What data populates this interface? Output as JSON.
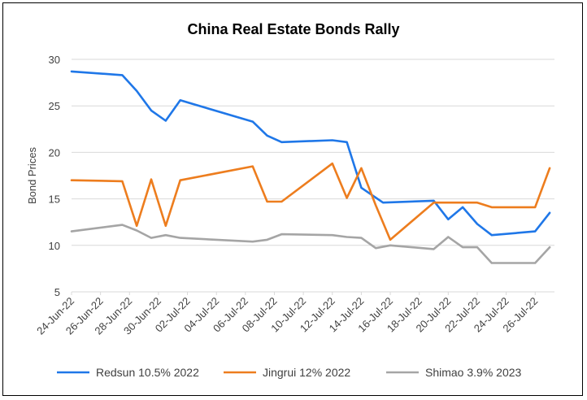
{
  "chart_data": {
    "type": "line",
    "title": "China Real Estate Bonds Rally",
    "xlabel": "",
    "ylabel": "Bond Prices",
    "ylim": [
      5,
      30
    ],
    "yticks": [
      5,
      10,
      15,
      20,
      25,
      30
    ],
    "grid": true,
    "legend_position": "bottom",
    "x_range": [
      0,
      32
    ],
    "x_tick_labels": [
      {
        "day": 0,
        "label": "24-Jun-22"
      },
      {
        "day": 2,
        "label": "26-Jun-22"
      },
      {
        "day": 4,
        "label": "28-Jun-22"
      },
      {
        "day": 6,
        "label": "30-Jun-22"
      },
      {
        "day": 8,
        "label": "02-Jul-22"
      },
      {
        "day": 10,
        "label": "04-Jul-22"
      },
      {
        "day": 12,
        "label": "06-Jul-22"
      },
      {
        "day": 14,
        "label": "08-Jul-22"
      },
      {
        "day": 16,
        "label": "10-Jul-22"
      },
      {
        "day": 18,
        "label": "12-Jul-22"
      },
      {
        "day": 20,
        "label": "14-Jul-22"
      },
      {
        "day": 22,
        "label": "16-Jul-22"
      },
      {
        "day": 24,
        "label": "18-Jul-22"
      },
      {
        "day": 26,
        "label": "20-Jul-22"
      },
      {
        "day": 28,
        "label": "22-Jul-22"
      },
      {
        "day": 30,
        "label": "24-Jul-22"
      },
      {
        "day": 32,
        "label": "26-Jul-22"
      }
    ],
    "series": [
      {
        "name": "Redsun 10.5% 2022",
        "color": "#1f77e8",
        "points": [
          [
            0,
            28.7
          ],
          [
            3.5,
            28.3
          ],
          [
            4.5,
            26.6
          ],
          [
            5.5,
            24.5
          ],
          [
            6.5,
            23.4
          ],
          [
            7.5,
            25.6
          ],
          [
            12.5,
            23.3
          ],
          [
            13.5,
            21.8
          ],
          [
            14.5,
            21.1
          ],
          [
            18,
            21.3
          ],
          [
            19,
            21.1
          ],
          [
            20,
            16.2
          ],
          [
            21.5,
            14.6
          ],
          [
            25,
            14.8
          ],
          [
            26,
            12.8
          ],
          [
            27,
            14.1
          ],
          [
            28,
            12.3
          ],
          [
            29,
            11.1
          ],
          [
            32,
            11.5
          ],
          [
            33,
            13.5
          ]
        ]
      },
      {
        "name": "Jingrui 12% 2022",
        "color": "#ed7d1e",
        "points": [
          [
            0,
            17.0
          ],
          [
            3.5,
            16.9
          ],
          [
            4.5,
            12.1
          ],
          [
            5.5,
            17.1
          ],
          [
            6.5,
            12.1
          ],
          [
            7.5,
            17.0
          ],
          [
            12.5,
            18.5
          ],
          [
            13.5,
            14.7
          ],
          [
            14.5,
            14.7
          ],
          [
            18,
            18.8
          ],
          [
            19,
            15.1
          ],
          [
            20,
            18.3
          ],
          [
            21,
            14.3
          ],
          [
            22,
            10.6
          ],
          [
            25,
            14.6
          ],
          [
            28,
            14.6
          ],
          [
            29,
            14.1
          ],
          [
            32,
            14.1
          ],
          [
            33,
            18.3
          ]
        ]
      },
      {
        "name": "Shimao 3.9% 2023",
        "color": "#a5a5a5",
        "points": [
          [
            0,
            11.5
          ],
          [
            3.5,
            12.2
          ],
          [
            4.5,
            11.6
          ],
          [
            5.5,
            10.8
          ],
          [
            6.5,
            11.1
          ],
          [
            7.5,
            10.8
          ],
          [
            12.5,
            10.4
          ],
          [
            13.5,
            10.6
          ],
          [
            14.5,
            11.2
          ],
          [
            18,
            11.1
          ],
          [
            19,
            10.9
          ],
          [
            20,
            10.8
          ],
          [
            21,
            9.7
          ],
          [
            22,
            10.0
          ],
          [
            25,
            9.6
          ],
          [
            26,
            10.9
          ],
          [
            27,
            9.8
          ],
          [
            28,
            9.8
          ],
          [
            29,
            8.1
          ],
          [
            32,
            8.1
          ],
          [
            33,
            9.8
          ]
        ]
      }
    ]
  }
}
